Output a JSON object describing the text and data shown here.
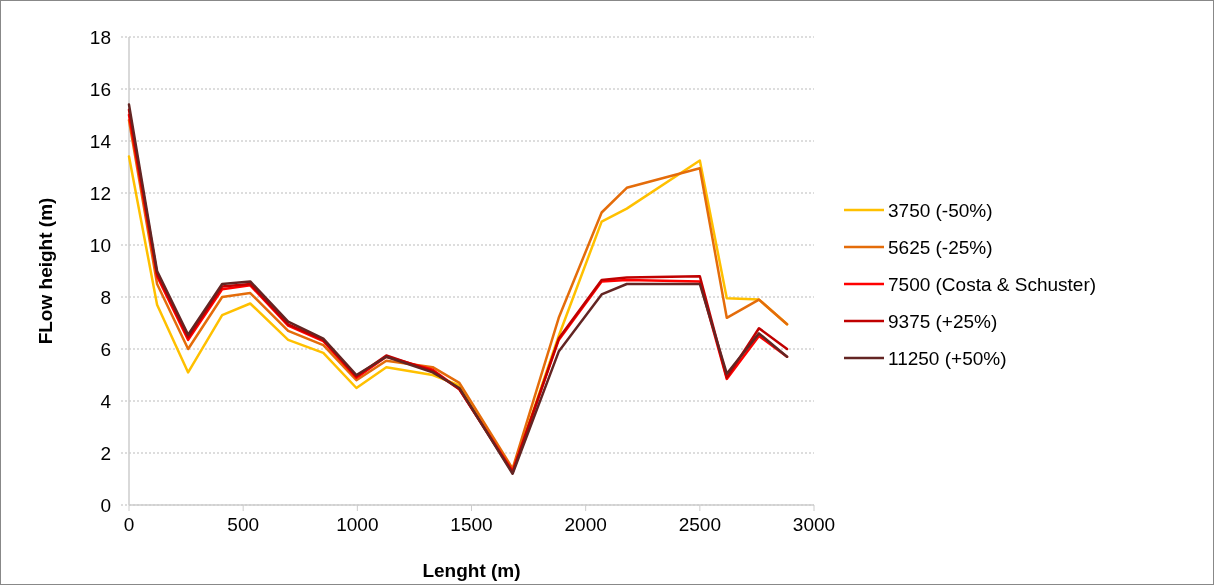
{
  "chart_data": {
    "type": "line",
    "xlabel": "Lenght (m)",
    "ylabel": "FLow height (m)",
    "x": [
      0,
      123,
      259,
      408,
      531,
      697,
      851,
      996,
      1127,
      1330,
      1447,
      1680,
      1882,
      2070,
      2180,
      2500,
      2618,
      2759,
      2882
    ],
    "series": [
      {
        "name": "3750 (-50%)",
        "color": "#ffc000",
        "values": [
          13.4,
          7.7,
          5.1,
          7.3,
          7.75,
          6.35,
          5.85,
          4.5,
          5.3,
          5.0,
          4.6,
          1.3,
          6.5,
          10.9,
          11.4,
          13.25,
          7.95,
          7.9,
          6.95
        ]
      },
      {
        "name": "5625 (-25%)",
        "color": "#e46c0a",
        "values": [
          14.8,
          8.5,
          6.0,
          8.0,
          8.15,
          6.7,
          6.15,
          4.8,
          5.55,
          5.3,
          4.7,
          1.4,
          7.2,
          11.25,
          12.2,
          12.95,
          7.2,
          7.9,
          6.95
        ]
      },
      {
        "name": "7500 (Costa & Schuster)",
        "color": "#ff0000",
        "values": [
          15.0,
          8.8,
          6.35,
          8.3,
          8.45,
          6.9,
          6.3,
          4.9,
          5.7,
          5.2,
          4.45,
          1.3,
          6.35,
          8.6,
          8.65,
          8.6,
          4.85,
          6.5,
          5.7
        ]
      },
      {
        "name": "9375 (+25%)",
        "color": "#c00000",
        "values": [
          15.2,
          8.9,
          6.45,
          8.4,
          8.5,
          6.95,
          6.35,
          4.95,
          5.75,
          5.15,
          4.45,
          1.25,
          6.4,
          8.65,
          8.75,
          8.8,
          4.9,
          6.8,
          6.0
        ]
      },
      {
        "name": "11250 (+50%)",
        "color": "#632523",
        "values": [
          15.4,
          9.0,
          6.55,
          8.5,
          8.6,
          7.05,
          6.4,
          5.0,
          5.7,
          5.1,
          4.5,
          1.2,
          5.9,
          8.1,
          8.5,
          8.5,
          5.05,
          6.6,
          5.7
        ]
      }
    ],
    "xlim": [
      0,
      3000
    ],
    "xticks": [
      0,
      500,
      1000,
      1500,
      2000,
      2500,
      3000
    ],
    "ylim": [
      0,
      18
    ],
    "yticks": [
      0,
      2,
      4,
      6,
      8,
      10,
      12,
      14,
      16,
      18
    ],
    "grid": "y",
    "legend": "right",
    "marker": "none",
    "line_style": "solid"
  }
}
